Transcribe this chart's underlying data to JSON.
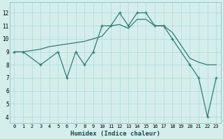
{
  "xlabel": "Humidex (Indice chaleur)",
  "line_color": "#2e7d6e",
  "bg_color": "#d4eeec",
  "grid_color": "#b0d8d5",
  "ylim_min": 3.5,
  "ylim_max": 12.8,
  "yticks": [
    4,
    5,
    6,
    7,
    8,
    9,
    10,
    11,
    12
  ],
  "smooth_x": [
    0,
    1,
    2,
    3,
    4,
    5,
    6,
    7,
    8,
    9,
    10,
    11,
    12,
    13,
    14,
    15,
    16,
    17,
    18,
    19,
    20,
    21,
    22,
    23
  ],
  "smooth_y": [
    9,
    9,
    9.1,
    9.2,
    9.4,
    9.5,
    9.6,
    9.7,
    9.8,
    10.0,
    10.2,
    11.0,
    11.1,
    10.8,
    11.5,
    11.5,
    11.0,
    11.0,
    10.5,
    9.5,
    8.5,
    8.2,
    8.0,
    8.0
  ],
  "jagged_x": [
    0,
    1,
    3,
    5,
    6,
    7,
    8,
    9,
    10,
    11,
    12,
    13,
    14,
    15,
    16,
    17,
    18,
    20,
    21,
    22,
    23
  ],
  "jagged_y": [
    9,
    9,
    8,
    9,
    7,
    9,
    8,
    9,
    11,
    11,
    12,
    11,
    12,
    12,
    11,
    11,
    10,
    8,
    7,
    4,
    7
  ]
}
